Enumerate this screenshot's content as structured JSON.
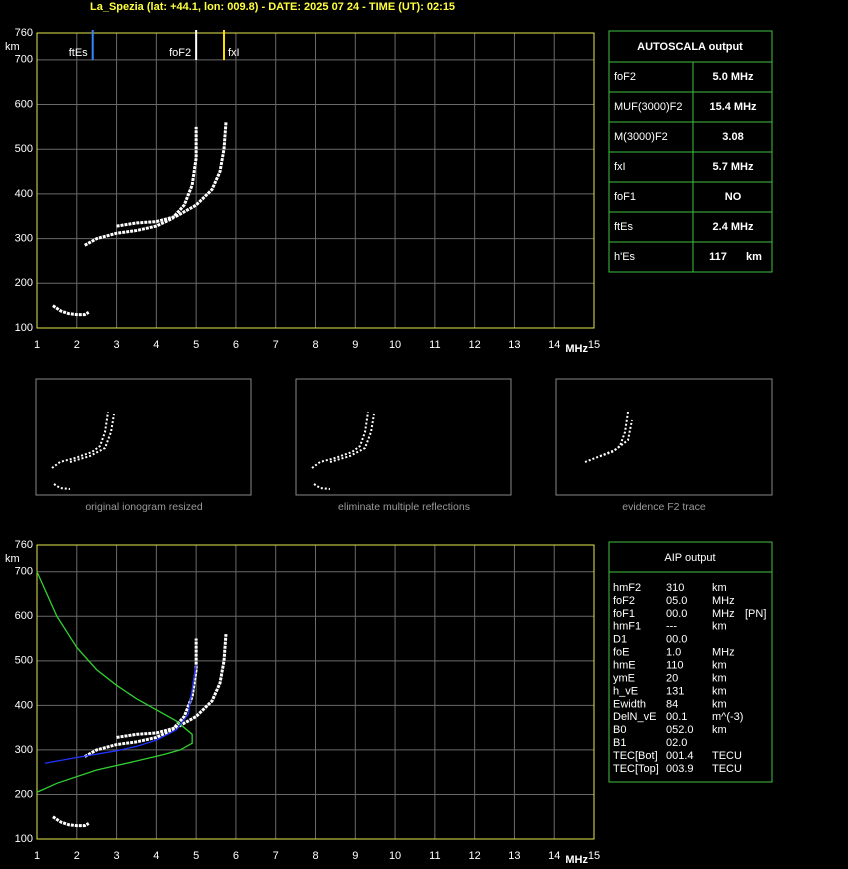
{
  "header": {
    "title": "La_Spezia (lat: +44.1, lon: 009.8) - DATE: 2025 07 24 - TIME (UT): 02:15"
  },
  "chart_data": [
    {
      "type": "line",
      "x_label": "MHz",
      "y_label": "km",
      "xlim": [
        1,
        15
      ],
      "ylim": [
        100,
        760
      ],
      "xticks": [
        1,
        2,
        3,
        4,
        5,
        6,
        7,
        8,
        9,
        10,
        11,
        12,
        13,
        14,
        15
      ],
      "yticks": [
        100,
        200,
        300,
        400,
        500,
        600,
        700,
        760
      ],
      "grid": true,
      "frame_color": "#e8e850",
      "series": [
        {
          "color": "#ffffff",
          "x": [
            2.2,
            2.5,
            3.0,
            3.5,
            4.0,
            4.4,
            4.7,
            4.9,
            5.0,
            5.0
          ],
          "values": [
            285,
            300,
            312,
            318,
            328,
            345,
            375,
            420,
            480,
            550
          ]
        },
        {
          "color": "#ffffff",
          "x": [
            3.0,
            3.5,
            4.0,
            4.5,
            5.0,
            5.4,
            5.6,
            5.7,
            5.75
          ],
          "values": [
            328,
            335,
            338,
            350,
            375,
            410,
            450,
            500,
            560
          ]
        },
        {
          "color": "#ffffff",
          "x": [
            1.4,
            1.6,
            1.8,
            2.0,
            2.2,
            2.3
          ],
          "values": [
            150,
            138,
            132,
            130,
            130,
            135
          ]
        }
      ],
      "markers": [
        {
          "label": "ftEs",
          "value": 2.4,
          "color": "#3388ff"
        },
        {
          "label": "foF2",
          "value": 5.0,
          "color": "#ffffff"
        },
        {
          "label": "fxI",
          "value": 5.7,
          "color": "#ffdd00"
        }
      ]
    },
    {
      "type": "line",
      "x_label": "MHz",
      "y_label": "km",
      "xlim": [
        1,
        15
      ],
      "ylim": [
        100,
        760
      ],
      "xticks": [
        1,
        2,
        3,
        4,
        5,
        6,
        7,
        8,
        9,
        10,
        11,
        12,
        13,
        14,
        15
      ],
      "yticks": [
        100,
        200,
        300,
        400,
        500,
        600,
        700,
        760
      ],
      "grid": true,
      "frame_color": "#e8e850",
      "series": [
        {
          "color": "#ffffff",
          "x": [
            2.2,
            2.5,
            3.0,
            3.5,
            4.0,
            4.4,
            4.7,
            4.9,
            5.0,
            5.0
          ],
          "values": [
            285,
            300,
            312,
            318,
            328,
            345,
            375,
            420,
            480,
            550
          ]
        },
        {
          "color": "#ffffff",
          "x": [
            3.0,
            3.5,
            4.0,
            4.5,
            5.0,
            5.4,
            5.6,
            5.7,
            5.75
          ],
          "values": [
            328,
            335,
            338,
            350,
            375,
            410,
            450,
            500,
            560
          ]
        },
        {
          "color": "#ffffff",
          "x": [
            1.4,
            1.6,
            1.8,
            2.0,
            2.2,
            2.3
          ],
          "values": [
            150,
            138,
            132,
            130,
            130,
            135
          ]
        },
        {
          "color": "#30d030",
          "x": [
            1.0,
            1.5,
            2.0,
            2.5,
            3.0,
            3.5,
            4.0,
            4.5,
            4.9,
            4.9,
            4.6,
            4.2,
            3.5,
            2.5,
            1.5,
            1.0
          ],
          "values": [
            700,
            600,
            530,
            480,
            445,
            415,
            390,
            365,
            335,
            315,
            300,
            290,
            275,
            255,
            225,
            205
          ]
        },
        {
          "color": "#2233ff",
          "x": [
            1.2,
            2.0,
            3.0,
            3.5,
            4.0,
            4.5,
            4.8,
            5.0
          ],
          "values": [
            270,
            283,
            298,
            308,
            322,
            345,
            380,
            490
          ]
        }
      ]
    }
  ],
  "thumbnails": {
    "captions": [
      "original ionogram resized",
      "eliminate multiple reflections",
      "evidence F2 trace"
    ]
  },
  "autoscala": {
    "title": "AUTOSCALA output",
    "rows": [
      {
        "label": "foF2",
        "value": "5.0 MHz",
        "color": "#ffffff"
      },
      {
        "label": "MUF(3000)F2",
        "value": "15.4 MHz",
        "color": "#ffffff"
      },
      {
        "label": "M(3000)F2",
        "value": "3.08",
        "color": "#ffffff"
      },
      {
        "label": "fxI",
        "value": "5.7 MHz",
        "color": "#e0d040"
      },
      {
        "label": "foF1",
        "value": "NO",
        "color": "#ff2020"
      },
      {
        "label": "ftEs",
        "value": "2.4 MHz",
        "color": "#3399ff"
      },
      {
        "label": "h'Es",
        "value": "117",
        "unit": "km",
        "color": "#ffffff"
      }
    ]
  },
  "aip": {
    "title": "AIP output",
    "rows": [
      [
        "hmF2",
        "310",
        "km"
      ],
      [
        "foF2",
        "05.0",
        "MHz"
      ],
      [
        "foF1",
        "00.0",
        "MHz",
        "[PN]"
      ],
      [
        "hmF1",
        "---",
        "km"
      ],
      [
        "D1",
        "00.0"
      ],
      [
        "foE",
        "1.0",
        "MHz"
      ],
      [
        "hmE",
        "110",
        "km"
      ],
      [
        "ymE",
        "20",
        "km"
      ],
      [
        "h_vE",
        "131",
        "km"
      ],
      [
        "Ewidth",
        "84",
        "km"
      ],
      [
        "DelN_vE",
        "00.1",
        "m^(-3)"
      ],
      [
        "B0",
        "052.0",
        "km"
      ],
      [
        "B1",
        "02.0"
      ],
      [
        "TEC[Bot]",
        "001.4",
        "TECU"
      ],
      [
        "TEC[Top]",
        "003.9",
        "TECU"
      ]
    ]
  }
}
